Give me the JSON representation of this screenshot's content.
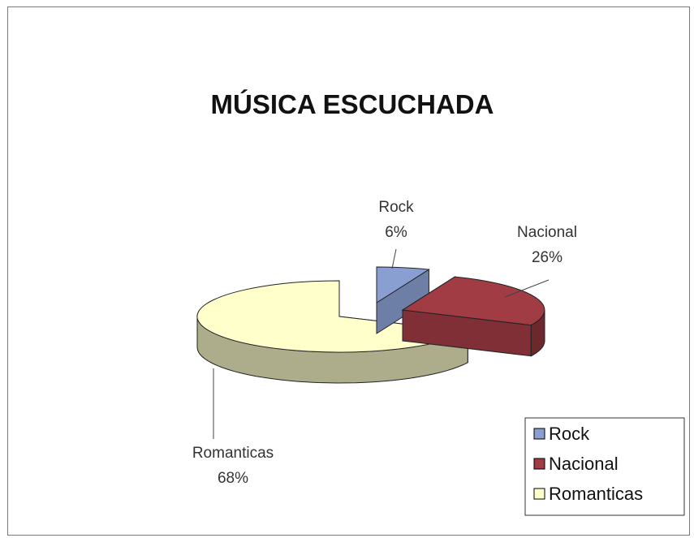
{
  "chart_data": {
    "type": "pie",
    "title": "MÚSICA ESCUCHADA",
    "three_d": true,
    "exploded": true,
    "legend_position": "bottom-right",
    "slices": [
      {
        "name": "Rock",
        "value": 6,
        "label": "6%",
        "color": "#8a9fd1"
      },
      {
        "name": "Nacional",
        "value": 26,
        "label": "26%",
        "color": "#a13b44"
      },
      {
        "name": "Romanticas",
        "value": 68,
        "label": "68%",
        "color": "#ffffcc"
      }
    ],
    "legend": [
      "Rock",
      "Nacional",
      "Romanticas"
    ]
  }
}
